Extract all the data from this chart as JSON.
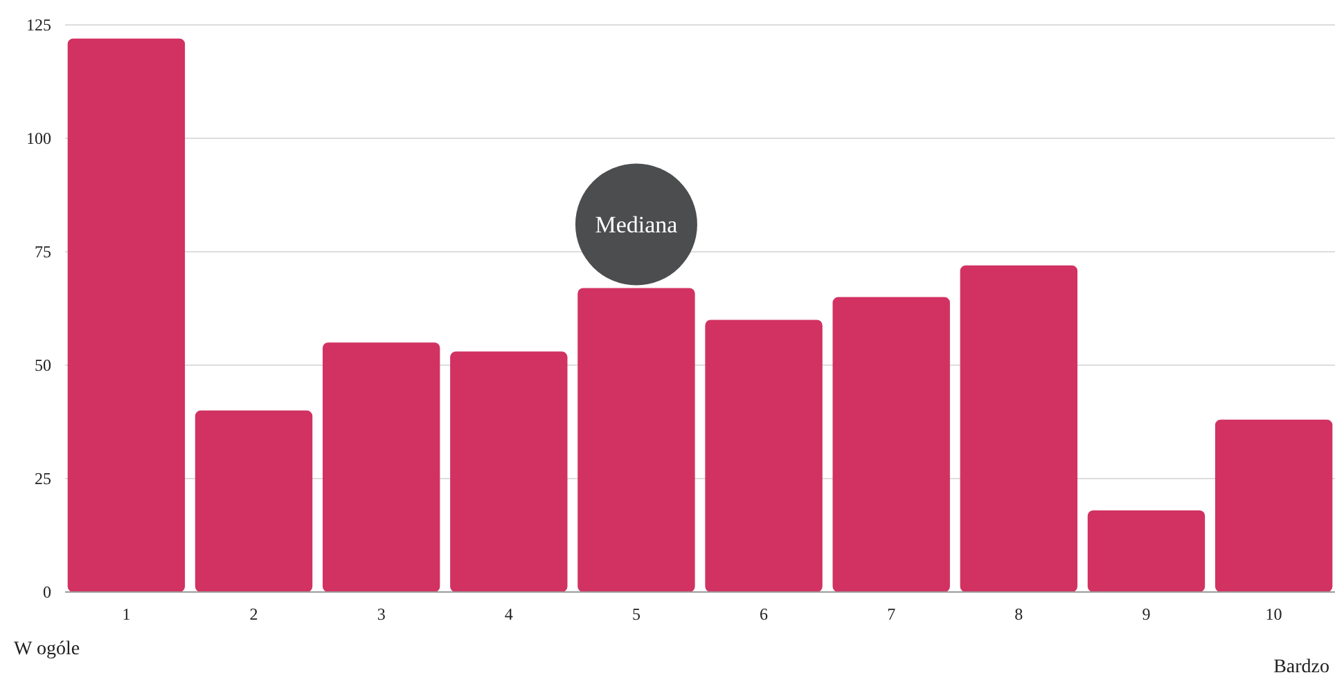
{
  "chart_data": {
    "type": "bar",
    "categories": [
      "1",
      "2",
      "3",
      "4",
      "5",
      "6",
      "7",
      "8",
      "9",
      "10"
    ],
    "values": [
      122,
      40,
      55,
      53,
      67,
      60,
      65,
      72,
      18,
      38
    ],
    "color": "#d13262",
    "ylim": [
      0,
      125
    ],
    "yticks": [
      0,
      25,
      50,
      75,
      100,
      125
    ],
    "grid": "y",
    "annotations": [
      {
        "text": "Mediana",
        "x": "5",
        "y": 67
      },
      "W ogóle",
      "Bardzo"
    ]
  }
}
